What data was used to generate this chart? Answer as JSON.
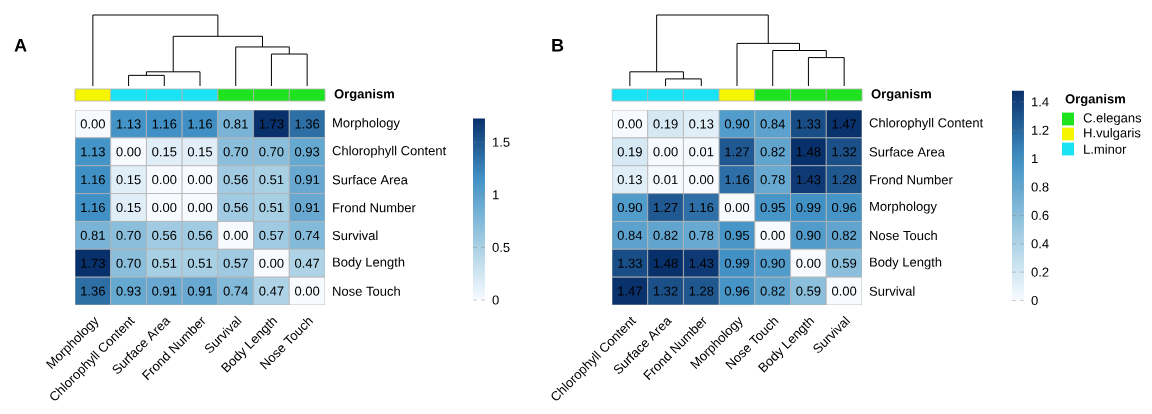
{
  "chart_data": [
    {
      "type": "heatmap",
      "title": "A",
      "categories": [
        "Morphology",
        "Chlorophyll Content",
        "Surface Area",
        "Frond Number",
        "Survival",
        "Body Length",
        "Nose Touch"
      ],
      "y_categories": [
        "Morphology",
        "Chlorophyll Content",
        "Surface Area",
        "Frond Number",
        "Survival",
        "Body Length",
        "Nose Touch"
      ],
      "cells": [
        [
          0.0,
          1.13,
          1.16,
          1.16,
          0.81,
          1.73,
          1.36
        ],
        [
          1.13,
          0.0,
          0.15,
          0.15,
          0.7,
          0.7,
          0.93
        ],
        [
          1.16,
          0.15,
          0.0,
          0.0,
          0.56,
          0.51,
          0.91
        ],
        [
          1.16,
          0.15,
          0.0,
          0.0,
          0.56,
          0.51,
          0.91
        ],
        [
          0.81,
          0.7,
          0.56,
          0.56,
          0.0,
          0.57,
          0.74
        ],
        [
          1.73,
          0.7,
          0.51,
          0.51,
          0.57,
          0.0,
          0.47
        ],
        [
          1.36,
          0.93,
          0.91,
          0.91,
          0.74,
          0.47,
          0.0
        ]
      ],
      "cell_labels": [
        [
          "0.00",
          "1.13",
          "1.16",
          "1.16",
          "0.81",
          "1.73",
          "1.36"
        ],
        [
          "1.13",
          "0.00",
          "0.15",
          "0.15",
          "0.70",
          "0.70",
          "0.93"
        ],
        [
          "1.16",
          "0.15",
          "0.00",
          "0.00",
          "0.56",
          "0.51",
          "0.91"
        ],
        [
          "1.16",
          "0.15",
          "0.00",
          "0.00",
          "0.56",
          "0.51",
          "0.91"
        ],
        [
          "0.81",
          "0.70",
          "0.56",
          "0.56",
          "0.00",
          "0.57",
          "0.74"
        ],
        [
          "1.73",
          "0.70",
          "0.51",
          "0.51",
          "0.57",
          "0.00",
          "0.47"
        ],
        [
          "1.36",
          "0.93",
          "0.91",
          "0.91",
          "0.74",
          "0.47",
          "0.00"
        ]
      ],
      "clim": [
        0,
        1.73
      ],
      "cticks": [
        0,
        0.5,
        1,
        1.5
      ],
      "annotations": [
        "Organism"
      ]
    },
    {
      "type": "heatmap",
      "title": "B",
      "categories": [
        "Chlorophyll Content",
        "Surface Area",
        "Frond Number",
        "Morphology",
        "Nose Touch",
        "Body Length",
        "Survival"
      ],
      "y_categories": [
        "Chlorophyll Content",
        "Surface Area",
        "Frond Number",
        "Morphology",
        "Nose Touch",
        "Body Length",
        "Survival"
      ],
      "cells": [
        [
          0.0,
          0.19,
          0.13,
          0.9,
          0.84,
          1.33,
          1.47
        ],
        [
          0.19,
          0.0,
          0.01,
          1.27,
          0.82,
          1.48,
          1.32
        ],
        [
          0.13,
          0.01,
          0.0,
          1.16,
          0.78,
          1.43,
          1.28
        ],
        [
          0.9,
          1.27,
          1.16,
          0.0,
          0.95,
          0.99,
          0.96
        ],
        [
          0.84,
          0.82,
          0.78,
          0.95,
          0.0,
          0.9,
          0.82
        ],
        [
          1.33,
          1.48,
          1.43,
          0.99,
          0.9,
          0.0,
          0.59
        ],
        [
          1.47,
          1.32,
          1.28,
          0.96,
          0.82,
          0.59,
          0.0
        ]
      ],
      "cell_labels": [
        [
          "0.00",
          "0.19",
          "0.13",
          "0.90",
          "0.84",
          "1.33",
          "1.47"
        ],
        [
          "0.19",
          "0.00",
          "0.01",
          "1.27",
          "0.82",
          "1.48",
          "1.32"
        ],
        [
          "0.13",
          "0.01",
          "0.00",
          "1.16",
          "0.78",
          "1.43",
          "1.28"
        ],
        [
          "0.90",
          "1.27",
          "1.16",
          "0.00",
          "0.95",
          "0.99",
          "0.96"
        ],
        [
          "0.84",
          "0.82",
          "0.78",
          "0.95",
          "0.00",
          "0.90",
          "0.82"
        ],
        [
          "1.33",
          "1.48",
          "1.43",
          "0.99",
          "0.90",
          "0.00",
          "0.59"
        ],
        [
          "1.47",
          "1.32",
          "1.28",
          "0.96",
          "0.82",
          "0.59",
          "0.00"
        ]
      ],
      "clim": [
        0,
        1.48
      ],
      "cticks": [
        0,
        0.2,
        0.4,
        0.6,
        0.8,
        1,
        1.2,
        1.4
      ],
      "legend_title": "Organism",
      "annotations": [
        "Organism",
        "C.elegans",
        "H.vulgaris",
        "L.minor"
      ]
    }
  ]
}
